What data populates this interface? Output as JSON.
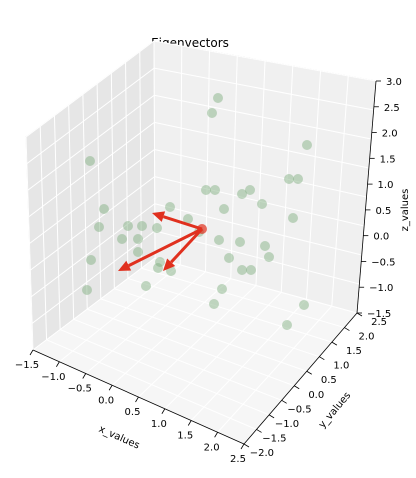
{
  "chart_data": {
    "type": "scatter",
    "projection": "3d",
    "title": "Eigenvectors",
    "xlabel": "x_values",
    "ylabel": "y_values",
    "zlabel": "z_values",
    "grid": true,
    "xticks": [
      "−1.5",
      "−1.0",
      "−0.5",
      "0.0",
      "0.5",
      "1.0",
      "1.5",
      "2.0",
      "2.5"
    ],
    "yticks": [
      "−2.0",
      "−1.5",
      "−1.0",
      "−0.5",
      "0.0",
      "0.5",
      "1.0",
      "1.5",
      "2.0",
      "2.5"
    ],
    "zticks": [
      "−1.5",
      "−1.0",
      "−0.5",
      "0.0",
      "0.5",
      "1.0",
      "1.5",
      "2.0",
      "2.5",
      "3.0"
    ],
    "xlim": [
      -1.5,
      2.5
    ],
    "ylim": [
      -2.0,
      2.5
    ],
    "zlim": [
      -1.5,
      3.0
    ],
    "colors": {
      "points": "#7aaa7a",
      "arrows": "#e0301e",
      "pane_left": "#e6e6e6",
      "pane_back": "#f0f0f0",
      "pane_floor": "#f6f6f6",
      "grid": "#ffffff"
    },
    "point_screen_estimates": [
      [
        218,
        98
      ],
      [
        212,
        113
      ],
      [
        90,
        161
      ],
      [
        307,
        145
      ],
      [
        289,
        179
      ],
      [
        298,
        179
      ],
      [
        206,
        190
      ],
      [
        215,
        190
      ],
      [
        250,
        190
      ],
      [
        242,
        194
      ],
      [
        104,
        209
      ],
      [
        99,
        227
      ],
      [
        224,
        209
      ],
      [
        262,
        204
      ],
      [
        142,
        226
      ],
      [
        138,
        239
      ],
      [
        122,
        239
      ],
      [
        128,
        226
      ],
      [
        157,
        228
      ],
      [
        170,
        207
      ],
      [
        188,
        219
      ],
      [
        293,
        218
      ],
      [
        199,
        232
      ],
      [
        219,
        240
      ],
      [
        240,
        242
      ],
      [
        265,
        246
      ],
      [
        269,
        257
      ],
      [
        138,
        252
      ],
      [
        160,
        262
      ],
      [
        91,
        260
      ],
      [
        158,
        268
      ],
      [
        229,
        258
      ],
      [
        242,
        270
      ],
      [
        251,
        270
      ],
      [
        171,
        271
      ],
      [
        146,
        286
      ],
      [
        222,
        289
      ],
      [
        87,
        290
      ],
      [
        214,
        304
      ],
      [
        304,
        305
      ],
      [
        287,
        325
      ]
    ],
    "arrows_screen_estimates": [
      {
        "from": [
          202,
          229
        ],
        "to": [
          152,
          213
        ]
      },
      {
        "from": [
          202,
          229
        ],
        "to": [
          118,
          271
        ]
      },
      {
        "from": [
          202,
          229
        ],
        "to": [
          163,
          271
        ]
      }
    ]
  }
}
